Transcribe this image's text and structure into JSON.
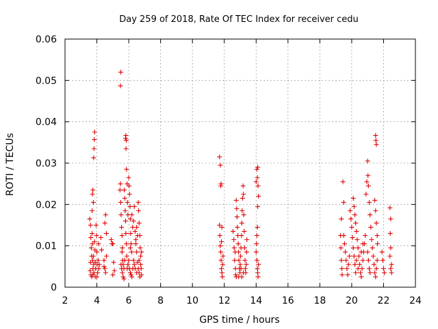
{
  "chart_data": {
    "type": "scatter",
    "title": "Day 259 of 2018, Rate Of TEC Index for receiver cedu",
    "xlabel": "GPS time / hours",
    "ylabel": "ROTI / TECUs",
    "xlim": [
      2,
      24
    ],
    "ylim": [
      0,
      0.06
    ],
    "xticks": [
      2,
      4,
      6,
      8,
      10,
      12,
      14,
      16,
      18,
      20,
      22,
      24
    ],
    "yticks": [
      0,
      0.01,
      0.02,
      0.03,
      0.04,
      0.05,
      0.06
    ],
    "ytick_labels": [
      "0",
      "0.01",
      "0.02",
      "0.03",
      "0.04",
      "0.05",
      "0.06"
    ],
    "grid": true,
    "marker": "+",
    "series": [
      {
        "name": "ROTI",
        "color": "#e00000",
        "points": [
          [
            3.55,
            0.0165
          ],
          [
            3.6,
            0.015
          ],
          [
            3.62,
            0.012
          ],
          [
            3.65,
            0.0095
          ],
          [
            3.6,
            0.006
          ],
          [
            3.58,
            0.004
          ],
          [
            3.63,
            0.003
          ],
          [
            3.67,
            0.0075
          ],
          [
            3.7,
            0.0185
          ],
          [
            3.72,
            0.0225
          ],
          [
            3.75,
            0.0235
          ],
          [
            3.78,
            0.0205
          ],
          [
            3.8,
            0.0313
          ],
          [
            3.82,
            0.0335
          ],
          [
            3.84,
            0.0357
          ],
          [
            3.86,
            0.0375
          ],
          [
            3.78,
            0.0075
          ],
          [
            3.8,
            0.0055
          ],
          [
            3.75,
            0.0045
          ],
          [
            3.82,
            0.0035
          ],
          [
            3.85,
            0.011
          ],
          [
            3.88,
            0.009
          ],
          [
            3.9,
            0.006
          ],
          [
            3.92,
            0.0045
          ],
          [
            3.95,
            0.015
          ],
          [
            3.98,
            0.0125
          ],
          [
            4.0,
            0.0085
          ],
          [
            4.02,
            0.0055
          ],
          [
            4.05,
            0.0035
          ],
          [
            4.08,
            0.0065
          ],
          [
            4.1,
            0.0105
          ],
          [
            4.12,
            0.0045
          ],
          [
            3.7,
            0.013
          ],
          [
            3.72,
            0.0105
          ],
          [
            3.74,
            0.0065
          ],
          [
            3.76,
            0.003
          ],
          [
            3.68,
            0.0025
          ],
          [
            3.9,
            0.0025
          ],
          [
            4.0,
            0.0025
          ],
          [
            4.15,
            0.0055
          ],
          [
            4.25,
            0.012
          ],
          [
            4.3,
            0.009
          ],
          [
            4.45,
            0.0065
          ],
          [
            4.5,
            0.0045
          ],
          [
            4.55,
            0.0035
          ],
          [
            4.6,
            0.0075
          ],
          [
            4.55,
            0.0175
          ],
          [
            4.5,
            0.0155
          ],
          [
            4.6,
            0.013
          ],
          [
            4.45,
            0.005
          ],
          [
            4.9,
            0.0115
          ],
          [
            4.95,
            0.0105
          ],
          [
            5.0,
            0.0105
          ],
          [
            5.05,
            0.006
          ],
          [
            5.1,
            0.004
          ],
          [
            5.0,
            0.003
          ],
          [
            5.45,
            0.0235
          ],
          [
            5.48,
            0.025
          ],
          [
            5.5,
            0.0205
          ],
          [
            5.52,
            0.0175
          ],
          [
            5.55,
            0.0145
          ],
          [
            5.58,
            0.0125
          ],
          [
            5.6,
            0.0095
          ],
          [
            5.62,
            0.0065
          ],
          [
            5.5,
            0.052
          ],
          [
            5.48,
            0.0487
          ],
          [
            5.55,
            0.0045
          ],
          [
            5.6,
            0.0035
          ],
          [
            5.65,
            0.0025
          ],
          [
            5.7,
            0.002
          ],
          [
            5.52,
            0.0055
          ],
          [
            5.58,
            0.0085
          ],
          [
            5.72,
            0.0235
          ],
          [
            5.75,
            0.0215
          ],
          [
            5.78,
            0.0185
          ],
          [
            5.8,
            0.016
          ],
          [
            5.82,
            0.013
          ],
          [
            5.85,
            0.0105
          ],
          [
            5.88,
            0.0075
          ],
          [
            5.9,
            0.0045
          ],
          [
            5.8,
            0.036
          ],
          [
            5.82,
            0.0367
          ],
          [
            5.85,
            0.0355
          ],
          [
            5.83,
            0.0335
          ],
          [
            5.86,
            0.0285
          ],
          [
            5.9,
            0.025
          ],
          [
            5.92,
            0.0205
          ],
          [
            5.95,
            0.0175
          ],
          [
            6.0,
            0.0265
          ],
          [
            6.02,
            0.0245
          ],
          [
            6.05,
            0.0225
          ],
          [
            6.08,
            0.0195
          ],
          [
            6.1,
            0.0165
          ],
          [
            6.12,
            0.013
          ],
          [
            6.15,
            0.0105
          ],
          [
            6.18,
            0.0085
          ],
          [
            6.0,
            0.0065
          ],
          [
            6.05,
            0.0045
          ],
          [
            6.1,
            0.0035
          ],
          [
            6.15,
            0.003
          ],
          [
            6.2,
            0.0025
          ],
          [
            6.25,
            0.0045
          ],
          [
            6.3,
            0.0065
          ],
          [
            6.35,
            0.0055
          ],
          [
            6.4,
            0.0135
          ],
          [
            6.45,
            0.0115
          ],
          [
            6.5,
            0.0085
          ],
          [
            6.55,
            0.006
          ],
          [
            6.6,
            0.0045
          ],
          [
            6.65,
            0.0035
          ],
          [
            6.7,
            0.0025
          ],
          [
            6.75,
            0.0055
          ],
          [
            6.6,
            0.0205
          ],
          [
            6.62,
            0.0185
          ],
          [
            6.65,
            0.0155
          ],
          [
            6.7,
            0.0125
          ],
          [
            6.72,
            0.0095
          ],
          [
            6.75,
            0.0075
          ],
          [
            6.78,
            0.0045
          ],
          [
            6.8,
            0.003
          ],
          [
            6.3,
            0.016
          ],
          [
            6.35,
            0.0195
          ],
          [
            6.2,
            0.0175
          ],
          [
            6.25,
            0.0145
          ],
          [
            6.1,
            0.0095
          ],
          [
            6.45,
            0.0105
          ],
          [
            6.5,
            0.0145
          ],
          [
            6.55,
            0.0125
          ],
          [
            5.65,
            0.0055
          ],
          [
            5.7,
            0.0045
          ],
          [
            5.75,
            0.0065
          ],
          [
            5.95,
            0.0055
          ],
          [
            6.4,
            0.0045
          ],
          [
            6.5,
            0.0035
          ],
          [
            6.65,
            0.0065
          ],
          [
            6.8,
            0.0085
          ],
          [
            11.7,
            0.0315
          ],
          [
            11.75,
            0.0295
          ],
          [
            11.8,
            0.025
          ],
          [
            11.78,
            0.0245
          ],
          [
            11.7,
            0.015
          ],
          [
            11.72,
            0.0125
          ],
          [
            11.75,
            0.01
          ],
          [
            11.78,
            0.0085
          ],
          [
            11.8,
            0.0065
          ],
          [
            11.82,
            0.0045
          ],
          [
            11.85,
            0.0035
          ],
          [
            11.88,
            0.0025
          ],
          [
            11.9,
            0.0055
          ],
          [
            11.92,
            0.0075
          ],
          [
            11.85,
            0.0145
          ],
          [
            11.82,
            0.011
          ],
          [
            12.55,
            0.0135
          ],
          [
            12.6,
            0.0115
          ],
          [
            12.62,
            0.0095
          ],
          [
            12.65,
            0.0065
          ],
          [
            12.7,
            0.0045
          ],
          [
            12.72,
            0.003
          ],
          [
            12.75,
            0.0025
          ],
          [
            12.68,
            0.0085
          ],
          [
            12.75,
            0.021
          ],
          [
            12.78,
            0.019
          ],
          [
            12.8,
            0.017
          ],
          [
            12.82,
            0.0145
          ],
          [
            12.85,
            0.0125
          ],
          [
            12.88,
            0.0105
          ],
          [
            12.9,
            0.0085
          ],
          [
            12.92,
            0.0065
          ],
          [
            12.95,
            0.0045
          ],
          [
            12.98,
            0.0035
          ],
          [
            13.0,
            0.0055
          ],
          [
            13.02,
            0.0075
          ],
          [
            13.05,
            0.0095
          ],
          [
            13.08,
            0.0125
          ],
          [
            13.1,
            0.0155
          ],
          [
            13.12,
            0.0185
          ],
          [
            13.15,
            0.0215
          ],
          [
            13.18,
            0.0245
          ],
          [
            13.2,
            0.0225
          ],
          [
            13.22,
            0.0175
          ],
          [
            13.25,
            0.0135
          ],
          [
            13.28,
            0.0095
          ],
          [
            13.3,
            0.0065
          ],
          [
            13.32,
            0.0045
          ],
          [
            13.35,
            0.0035
          ],
          [
            13.38,
            0.0055
          ],
          [
            13.4,
            0.0085
          ],
          [
            13.42,
            0.0115
          ],
          [
            13.2,
            0.0035
          ],
          [
            13.1,
            0.0025
          ],
          [
            12.9,
            0.0025
          ],
          [
            13.05,
            0.0045
          ],
          [
            14.0,
            0.0255
          ],
          [
            14.05,
            0.0285
          ],
          [
            14.1,
            0.029
          ],
          [
            14.08,
            0.0265
          ],
          [
            14.12,
            0.0245
          ],
          [
            14.15,
            0.022
          ],
          [
            14.1,
            0.0195
          ],
          [
            14.08,
            0.0145
          ],
          [
            14.05,
            0.0125
          ],
          [
            14.02,
            0.0105
          ],
          [
            14.0,
            0.0085
          ],
          [
            14.05,
            0.0065
          ],
          [
            14.08,
            0.0045
          ],
          [
            14.1,
            0.0035
          ],
          [
            14.12,
            0.0025
          ],
          [
            14.15,
            0.0055
          ],
          [
            19.45,
            0.0255
          ],
          [
            19.5,
            0.0205
          ],
          [
            19.35,
            0.0165
          ],
          [
            19.3,
            0.0125
          ],
          [
            19.32,
            0.0095
          ],
          [
            19.35,
            0.0065
          ],
          [
            19.38,
            0.0045
          ],
          [
            19.4,
            0.003
          ],
          [
            19.5,
            0.0125
          ],
          [
            19.55,
            0.0105
          ],
          [
            19.6,
            0.0085
          ],
          [
            19.65,
            0.0065
          ],
          [
            19.7,
            0.0045
          ],
          [
            19.75,
            0.003
          ],
          [
            19.8,
            0.0055
          ],
          [
            19.85,
            0.0075
          ],
          [
            19.9,
            0.0185
          ],
          [
            19.95,
            0.0165
          ],
          [
            20.0,
            0.0145
          ],
          [
            20.05,
            0.012
          ],
          [
            20.1,
            0.0095
          ],
          [
            20.15,
            0.0075
          ],
          [
            20.2,
            0.0055
          ],
          [
            20.25,
            0.0035
          ],
          [
            20.1,
            0.0215
          ],
          [
            20.15,
            0.0195
          ],
          [
            20.2,
            0.0175
          ],
          [
            20.25,
            0.0155
          ],
          [
            20.3,
            0.0135
          ],
          [
            20.35,
            0.0115
          ],
          [
            20.4,
            0.0095
          ],
          [
            20.45,
            0.0075
          ],
          [
            20.5,
            0.0055
          ],
          [
            20.55,
            0.0035
          ],
          [
            20.6,
            0.0025
          ],
          [
            20.65,
            0.0045
          ],
          [
            20.7,
            0.0065
          ],
          [
            20.75,
            0.0085
          ],
          [
            20.8,
            0.0105
          ],
          [
            20.85,
            0.0125
          ],
          [
            20.9,
            0.0225
          ],
          [
            20.95,
            0.0255
          ],
          [
            21.0,
            0.0305
          ],
          [
            21.02,
            0.027
          ],
          [
            21.05,
            0.0245
          ],
          [
            21.1,
            0.0205
          ],
          [
            21.15,
            0.0175
          ],
          [
            21.2,
            0.0145
          ],
          [
            21.25,
            0.0115
          ],
          [
            21.3,
            0.0095
          ],
          [
            21.35,
            0.0075
          ],
          [
            21.4,
            0.0055
          ],
          [
            21.45,
            0.0035
          ],
          [
            21.5,
            0.0025
          ],
          [
            21.55,
            0.0045
          ],
          [
            21.6,
            0.0065
          ],
          [
            21.5,
            0.0367
          ],
          [
            21.52,
            0.0355
          ],
          [
            21.55,
            0.0345
          ],
          [
            21.45,
            0.021
          ],
          [
            21.5,
            0.0185
          ],
          [
            21.55,
            0.0155
          ],
          [
            21.6,
            0.0125
          ],
          [
            21.62,
            0.0105
          ],
          [
            21.0,
            0.0085
          ],
          [
            21.05,
            0.0065
          ],
          [
            21.1,
            0.0045
          ],
          [
            21.15,
            0.0035
          ],
          [
            20.3,
            0.0065
          ],
          [
            20.4,
            0.0045
          ],
          [
            20.6,
            0.0085
          ],
          [
            20.7,
            0.0105
          ],
          [
            21.9,
            0.0085
          ],
          [
            21.95,
            0.0065
          ],
          [
            22.0,
            0.0045
          ],
          [
            22.05,
            0.0035
          ],
          [
            22.4,
            0.0192
          ],
          [
            22.45,
            0.0165
          ],
          [
            22.42,
            0.013
          ],
          [
            22.45,
            0.0095
          ],
          [
            22.4,
            0.0075
          ],
          [
            22.5,
            0.0055
          ],
          [
            22.45,
            0.0045
          ],
          [
            22.5,
            0.0035
          ]
        ]
      }
    ]
  }
}
